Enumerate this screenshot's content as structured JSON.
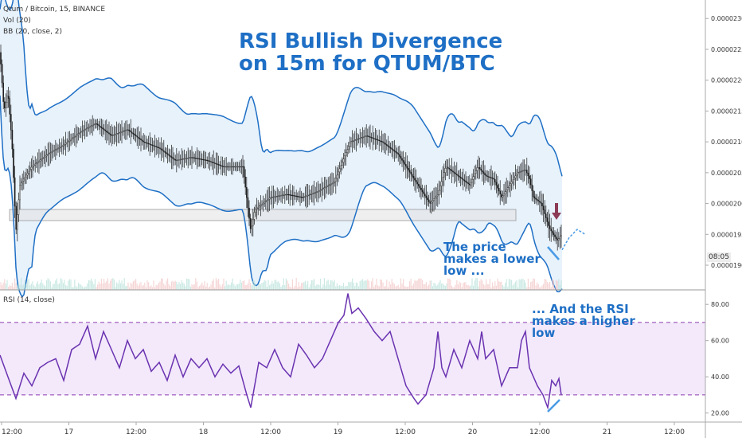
{
  "legend": {
    "symbol": "Qtum / Bitcoin, 15, BINANCE",
    "vol": "Vol (20)",
    "bb": "BB (20, close, 2)",
    "rsi": "RSI (14, close)"
  },
  "annotations": {
    "title_line1": "RSI Bullish Divergence",
    "title_line2": "on 15m for QTUM/BTC",
    "price_line1": "The price",
    "price_line2": "makes a lower",
    "price_line3": "low ...",
    "rsi_line1": "... And the RSI",
    "rsi_line2": "makes a higher",
    "rsi_line3": "low"
  },
  "countdown": "08:05",
  "colors": {
    "bands": "#1e6fc5",
    "band_fill": "#e8f2fb",
    "rsi_line": "#6a32b0",
    "rsi_band_fill": "#f3e9fb",
    "rsi_level": "#8a3ab0",
    "divergence": "#4a9be6",
    "arrow": "#8c3a55",
    "support_box": "#e2e2e2"
  },
  "chart_data": [
    {
      "type": "line",
      "panel": "price",
      "y_ticks": [
        "0.00002300",
        "0.00002250",
        "0.00002200",
        "0.00002150",
        "0.00002100",
        "0.00002050",
        "0.00002000",
        "0.00001950",
        "0.00001900"
      ],
      "ylim": [
        1.86e-05,
        2.33e-05
      ],
      "x_ticks": [
        "12:00",
        "17",
        "12:00",
        "18",
        "12:00",
        "19",
        "12:00",
        "20",
        "12:00",
        "21",
        "12:00"
      ],
      "series": [
        {
          "points": [
            [
              0,
              2.245e-05
            ],
            [
              5,
              2.15e-05
            ],
            [
              10,
              2.18e-05
            ],
            [
              15,
              2.1e-05
            ],
            [
              20,
              1.955e-05
            ],
            [
              25,
              2.03e-05
            ],
            [
              40,
              2.06e-05
            ],
            [
              60,
              2.08e-05
            ],
            [
              80,
              2.095e-05
            ],
            [
              100,
              2.115e-05
            ],
            [
              120,
              2.13e-05
            ],
            [
              140,
              2.11e-05
            ],
            [
              160,
              2.12e-05
            ],
            [
              180,
              2.1e-05
            ],
            [
              200,
              2.09e-05
            ],
            [
              220,
              2.07e-05
            ],
            [
              240,
              2.075e-05
            ],
            [
              260,
              2.07e-05
            ],
            [
              280,
              2.06e-05
            ],
            [
              305,
              2.06e-05
            ],
            [
              315,
              1.955e-05
            ],
            [
              320,
              1.99e-05
            ],
            [
              340,
              2.01e-05
            ],
            [
              360,
              2.015e-05
            ],
            [
              380,
              2.01e-05
            ],
            [
              400,
              2.02e-05
            ],
            [
              420,
              2.035e-05
            ],
            [
              440,
              2.1e-05
            ],
            [
              460,
              2.11e-05
            ],
            [
              480,
              2.1e-05
            ],
            [
              500,
              2.08e-05
            ],
            [
              520,
              2.04e-05
            ],
            [
              540,
              2e-05
            ],
            [
              550,
              2.015e-05
            ],
            [
              560,
              2.06e-05
            ],
            [
              570,
              2.05e-05
            ],
            [
              580,
              2.04e-05
            ],
            [
              590,
              2.03e-05
            ],
            [
              600,
              2.06e-05
            ],
            [
              610,
              2.045e-05
            ],
            [
              620,
              2.04e-05
            ],
            [
              630,
              2.01e-05
            ],
            [
              640,
              2.03e-05
            ],
            [
              650,
              2.05e-05
            ],
            [
              660,
              2.055e-05
            ],
            [
              665,
              2.04e-05
            ],
            [
              670,
              2.01e-05
            ],
            [
              680,
              2e-05
            ],
            [
              690,
              1.96e-05
            ],
            [
              700,
              1.94e-05
            ],
            [
              706,
              1.95e-05
            ]
          ]
        },
        {
          "name": "projection",
          "points": [
            [
              706,
              1.925e-05
            ],
            [
              715,
              1.945e-05
            ],
            [
              725,
              1.958e-05
            ],
            [
              735,
              1.95e-05
            ]
          ]
        }
      ]
    },
    {
      "type": "line",
      "panel": "rsi",
      "y_ticks": [
        "80.00",
        "60.00",
        "40.00",
        "20.00"
      ],
      "ylim": [
        15,
        88
      ],
      "levels": [
        70,
        30
      ],
      "x_ticks": [
        "12:00",
        "17",
        "12:00",
        "18",
        "12:00",
        "19",
        "12:00",
        "20",
        "12:00",
        "21",
        "12:00"
      ],
      "series": [
        {
          "points": [
            [
              0,
              52
            ],
            [
              10,
              40
            ],
            [
              20,
              28
            ],
            [
              30,
              42
            ],
            [
              40,
              35
            ],
            [
              50,
              45
            ],
            [
              60,
              48
            ],
            [
              70,
              50
            ],
            [
              80,
              38
            ],
            [
              90,
              55
            ],
            [
              100,
              58
            ],
            [
              110,
              68
            ],
            [
              120,
              50
            ],
            [
              130,
              65
            ],
            [
              140,
              55
            ],
            [
              150,
              45
            ],
            [
              160,
              60
            ],
            [
              170,
              50
            ],
            [
              180,
              55
            ],
            [
              190,
              43
            ],
            [
              200,
              48
            ],
            [
              210,
              38
            ],
            [
              220,
              52
            ],
            [
              230,
              40
            ],
            [
              240,
              50
            ],
            [
              250,
              45
            ],
            [
              260,
              50
            ],
            [
              270,
              40
            ],
            [
              280,
              47
            ],
            [
              290,
              42
            ],
            [
              300,
              46
            ],
            [
              310,
              30
            ],
            [
              315,
              23
            ],
            [
              325,
              48
            ],
            [
              335,
              45
            ],
            [
              345,
              55
            ],
            [
              355,
              45
            ],
            [
              365,
              40
            ],
            [
              375,
              58
            ],
            [
              385,
              52
            ],
            [
              395,
              45
            ],
            [
              405,
              50
            ],
            [
              415,
              60
            ],
            [
              425,
              70
            ],
            [
              432,
              74
            ],
            [
              437,
              86
            ],
            [
              442,
              75
            ],
            [
              450,
              78
            ],
            [
              460,
              72
            ],
            [
              470,
              65
            ],
            [
              480,
              60
            ],
            [
              490,
              65
            ],
            [
              500,
              50
            ],
            [
              510,
              35
            ],
            [
              520,
              28
            ],
            [
              525,
              25
            ],
            [
              535,
              30
            ],
            [
              545,
              45
            ],
            [
              550,
              65
            ],
            [
              555,
              45
            ],
            [
              560,
              40
            ],
            [
              570,
              55
            ],
            [
              580,
              45
            ],
            [
              590,
              60
            ],
            [
              600,
              50
            ],
            [
              605,
              65
            ],
            [
              610,
              50
            ],
            [
              620,
              55
            ],
            [
              630,
              35
            ],
            [
              640,
              45
            ],
            [
              650,
              45
            ],
            [
              655,
              60
            ],
            [
              660,
              65
            ],
            [
              665,
              45
            ],
            [
              670,
              40
            ],
            [
              675,
              35
            ],
            [
              682,
              30
            ],
            [
              688,
              23
            ],
            [
              693,
              38
            ],
            [
              698,
              35
            ],
            [
              702,
              39
            ],
            [
              705,
              30
            ]
          ]
        }
      ]
    }
  ]
}
